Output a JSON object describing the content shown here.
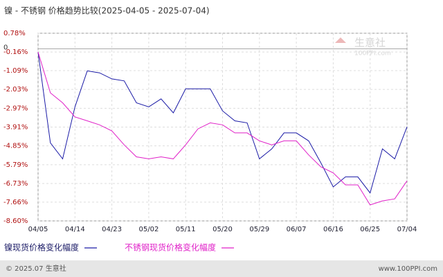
{
  "chart_data": {
    "type": "line",
    "title": "镍 - 不锈钢 价格趋势比较(2025-04-05 - 2025-07-04)",
    "categories": [
      "04/05",
      null,
      null,
      "04/14",
      null,
      null,
      "04/23",
      null,
      null,
      "05/02",
      null,
      null,
      "05/11",
      null,
      null,
      "05/20",
      null,
      null,
      "05/29",
      null,
      null,
      "06/07",
      null,
      null,
      "06/16",
      null,
      null,
      "06/25",
      null,
      null,
      "07/04"
    ],
    "series": [
      {
        "name": "镍现货价格变化幅度",
        "color": "#1a1aa6",
        "values": [
          -0.16,
          -4.7,
          -5.5,
          -2.9,
          -1.1,
          -1.2,
          -1.5,
          -1.6,
          -2.7,
          -2.9,
          -2.5,
          -3.2,
          -2.0,
          -2.0,
          -2.0,
          -3.1,
          -3.6,
          -3.7,
          -5.5,
          -5.0,
          -4.2,
          -4.2,
          -4.6,
          -5.7,
          -6.9,
          -6.4,
          -6.4,
          -7.2,
          -5.0,
          -5.5,
          -3.9
        ]
      },
      {
        "name": "不锈钢现货价格变化幅度",
        "color": "#e020c8",
        "values": [
          -0.16,
          -2.2,
          -2.7,
          -3.4,
          -3.6,
          -3.8,
          -4.1,
          -4.8,
          -5.4,
          -5.5,
          -5.4,
          -5.5,
          -4.8,
          -4.0,
          -3.7,
          -3.8,
          -4.2,
          -4.2,
          -4.6,
          -4.8,
          -4.6,
          -4.6,
          -5.3,
          -5.9,
          -6.2,
          -6.8,
          -6.8,
          -7.8,
          -7.6,
          -7.5,
          -6.6
        ]
      }
    ],
    "ylim": [
      -8.6,
      0.78
    ],
    "yticks": [
      {
        "value": 0.78,
        "label": "0.78%"
      },
      {
        "value": -0.16,
        "label": "-0.16%"
      },
      {
        "value": -1.09,
        "label": "-1.09%"
      },
      {
        "value": -2.03,
        "label": "-2.03%"
      },
      {
        "value": -2.97,
        "label": "-2.97%"
      },
      {
        "value": -3.91,
        "label": "-3.91%"
      },
      {
        "value": -4.85,
        "label": "-4.85%"
      },
      {
        "value": -5.79,
        "label": "-5.79%"
      },
      {
        "value": -6.73,
        "label": "-6.73%"
      },
      {
        "value": -7.66,
        "label": "-7.66%"
      },
      {
        "value": -8.6,
        "label": "-8.60%"
      }
    ],
    "zero_line": 0,
    "grid": true,
    "watermark": [
      "生意社",
      "100PPI.com"
    ],
    "footer": [
      "© 2025.07 生意社",
      "www.100PPI.com"
    ]
  }
}
